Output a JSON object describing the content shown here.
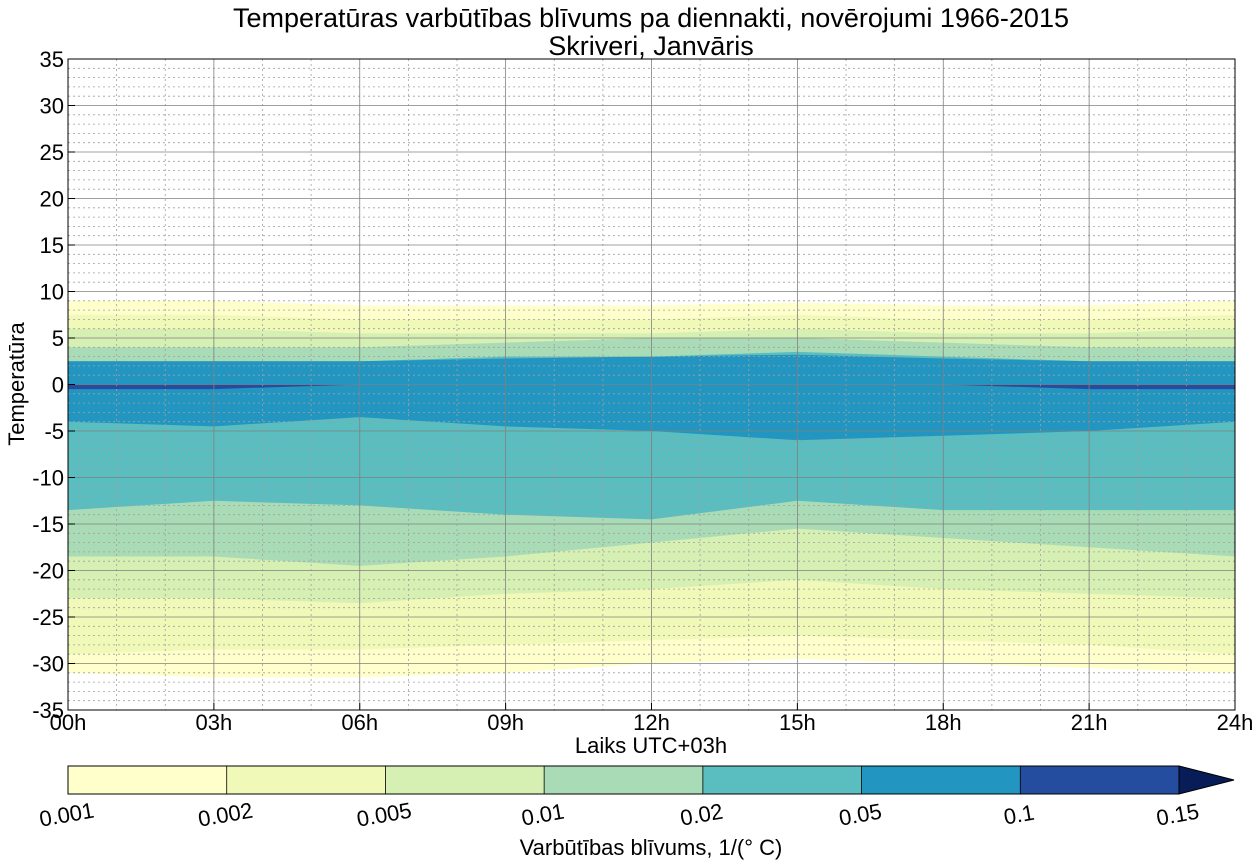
{
  "chart_data": {
    "type": "contourf",
    "title": "Temperatūras varbūtības blīvums pa diennakti, novērojumi 1966-2015",
    "subtitle": "Skriveri, Janvāris",
    "xlabel": "Laiks UTC+03h",
    "ylabel": "Temperatūra",
    "xlim": [
      0,
      24
    ],
    "ylim": [
      -35,
      35
    ],
    "x_ticks": [
      {
        "value": 0,
        "label": "00h"
      },
      {
        "value": 3,
        "label": "03h"
      },
      {
        "value": 6,
        "label": "06h"
      },
      {
        "value": 9,
        "label": "09h"
      },
      {
        "value": 12,
        "label": "12h"
      },
      {
        "value": 15,
        "label": "15h"
      },
      {
        "value": 18,
        "label": "18h"
      },
      {
        "value": 21,
        "label": "21h"
      },
      {
        "value": 24,
        "label": "24h"
      }
    ],
    "y_ticks": [
      {
        "value": 35,
        "label": "35"
      },
      {
        "value": 30,
        "label": "30"
      },
      {
        "value": 25,
        "label": "25"
      },
      {
        "value": 20,
        "label": "20"
      },
      {
        "value": 15,
        "label": "15"
      },
      {
        "value": 10,
        "label": "10"
      },
      {
        "value": 5,
        "label": "5"
      },
      {
        "value": 0,
        "label": "0"
      },
      {
        "value": -5,
        "label": "-5"
      },
      {
        "value": -10,
        "label": "-10"
      },
      {
        "value": -15,
        "label": "-15"
      },
      {
        "value": -20,
        "label": "-20"
      },
      {
        "value": -25,
        "label": "-25"
      },
      {
        "value": -30,
        "label": "-30"
      },
      {
        "value": -35,
        "label": "-35"
      }
    ],
    "grid": {
      "major": true,
      "minor": true,
      "minor_y_step": 1,
      "minor_x_step": 1
    },
    "colorbar": {
      "label": "Varbūtības blīvums, 1/(° C)",
      "levels": [
        {
          "value": 0.001,
          "label": "0.001"
        },
        {
          "value": 0.002,
          "label": "0.002"
        },
        {
          "value": 0.005,
          "label": "0.005"
        },
        {
          "value": 0.01,
          "label": "0.01"
        },
        {
          "value": 0.02,
          "label": "0.02"
        },
        {
          "value": 0.05,
          "label": "0.05"
        },
        {
          "value": 0.1,
          "label": "0.1"
        },
        {
          "value": 0.15,
          "label": "0.15"
        }
      ],
      "colors": [
        "#ffffcc",
        "#f1f9b8",
        "#d6efb3",
        "#a9dcb6",
        "#5abdc0",
        "#2296c1",
        "#244da0",
        "#081d58"
      ],
      "extend": "max"
    },
    "hours": [
      0,
      3,
      6,
      9,
      12,
      15,
      18,
      21,
      24
    ],
    "band_edges": [
      {
        "level": 0.001,
        "lower": [
          -31,
          -31.5,
          -31.5,
          -31,
          -30,
          -29.5,
          -30,
          -30.5,
          -31
        ],
        "upper": [
          9,
          9,
          8.5,
          8.5,
          8.5,
          8.8,
          8.5,
          8.5,
          9
        ]
      },
      {
        "level": 0.002,
        "lower": [
          -29,
          -28.5,
          -28.5,
          -28,
          -27.5,
          -27,
          -27.5,
          -28,
          -29
        ],
        "upper": [
          7.5,
          7.5,
          7,
          7,
          7,
          7.5,
          7,
          7,
          7.5
        ]
      },
      {
        "level": 0.005,
        "lower": [
          -23,
          -23,
          -23.5,
          -22.5,
          -22,
          -21,
          -22,
          -22.5,
          -23
        ],
        "upper": [
          6,
          6,
          5.5,
          5.5,
          5.5,
          6,
          5.5,
          5.5,
          6
        ]
      },
      {
        "level": 0.01,
        "lower": [
          -18.5,
          -18.5,
          -19.5,
          -18.5,
          -17,
          -15.5,
          -16.5,
          -17.5,
          -18.5
        ],
        "upper": [
          4,
          4,
          4,
          4.5,
          5,
          5,
          4.5,
          4,
          4
        ]
      },
      {
        "level": 0.02,
        "lower": [
          -13.5,
          -12.5,
          -13,
          -14,
          -14.5,
          -12.5,
          -13.5,
          -13.5,
          -13.5
        ],
        "upper": [
          2.5,
          2.5,
          2.5,
          3,
          3,
          3.5,
          3,
          2.5,
          2.5
        ]
      },
      {
        "level": 0.05,
        "lower": [
          -4,
          -4.5,
          -3.5,
          -4.5,
          -5,
          -6,
          -5.5,
          -5,
          -4
        ],
        "upper": [
          2.5,
          2.5,
          2.5,
          2.8,
          3,
          3.2,
          2.8,
          2.5,
          2.5
        ]
      },
      {
        "level": 0.1,
        "lower": [
          -0.5,
          -0.5,
          0,
          0,
          0,
          0,
          0,
          -0.5,
          -0.5
        ],
        "upper": [
          0,
          0,
          0,
          0,
          0,
          0,
          0,
          0,
          0
        ]
      }
    ]
  }
}
